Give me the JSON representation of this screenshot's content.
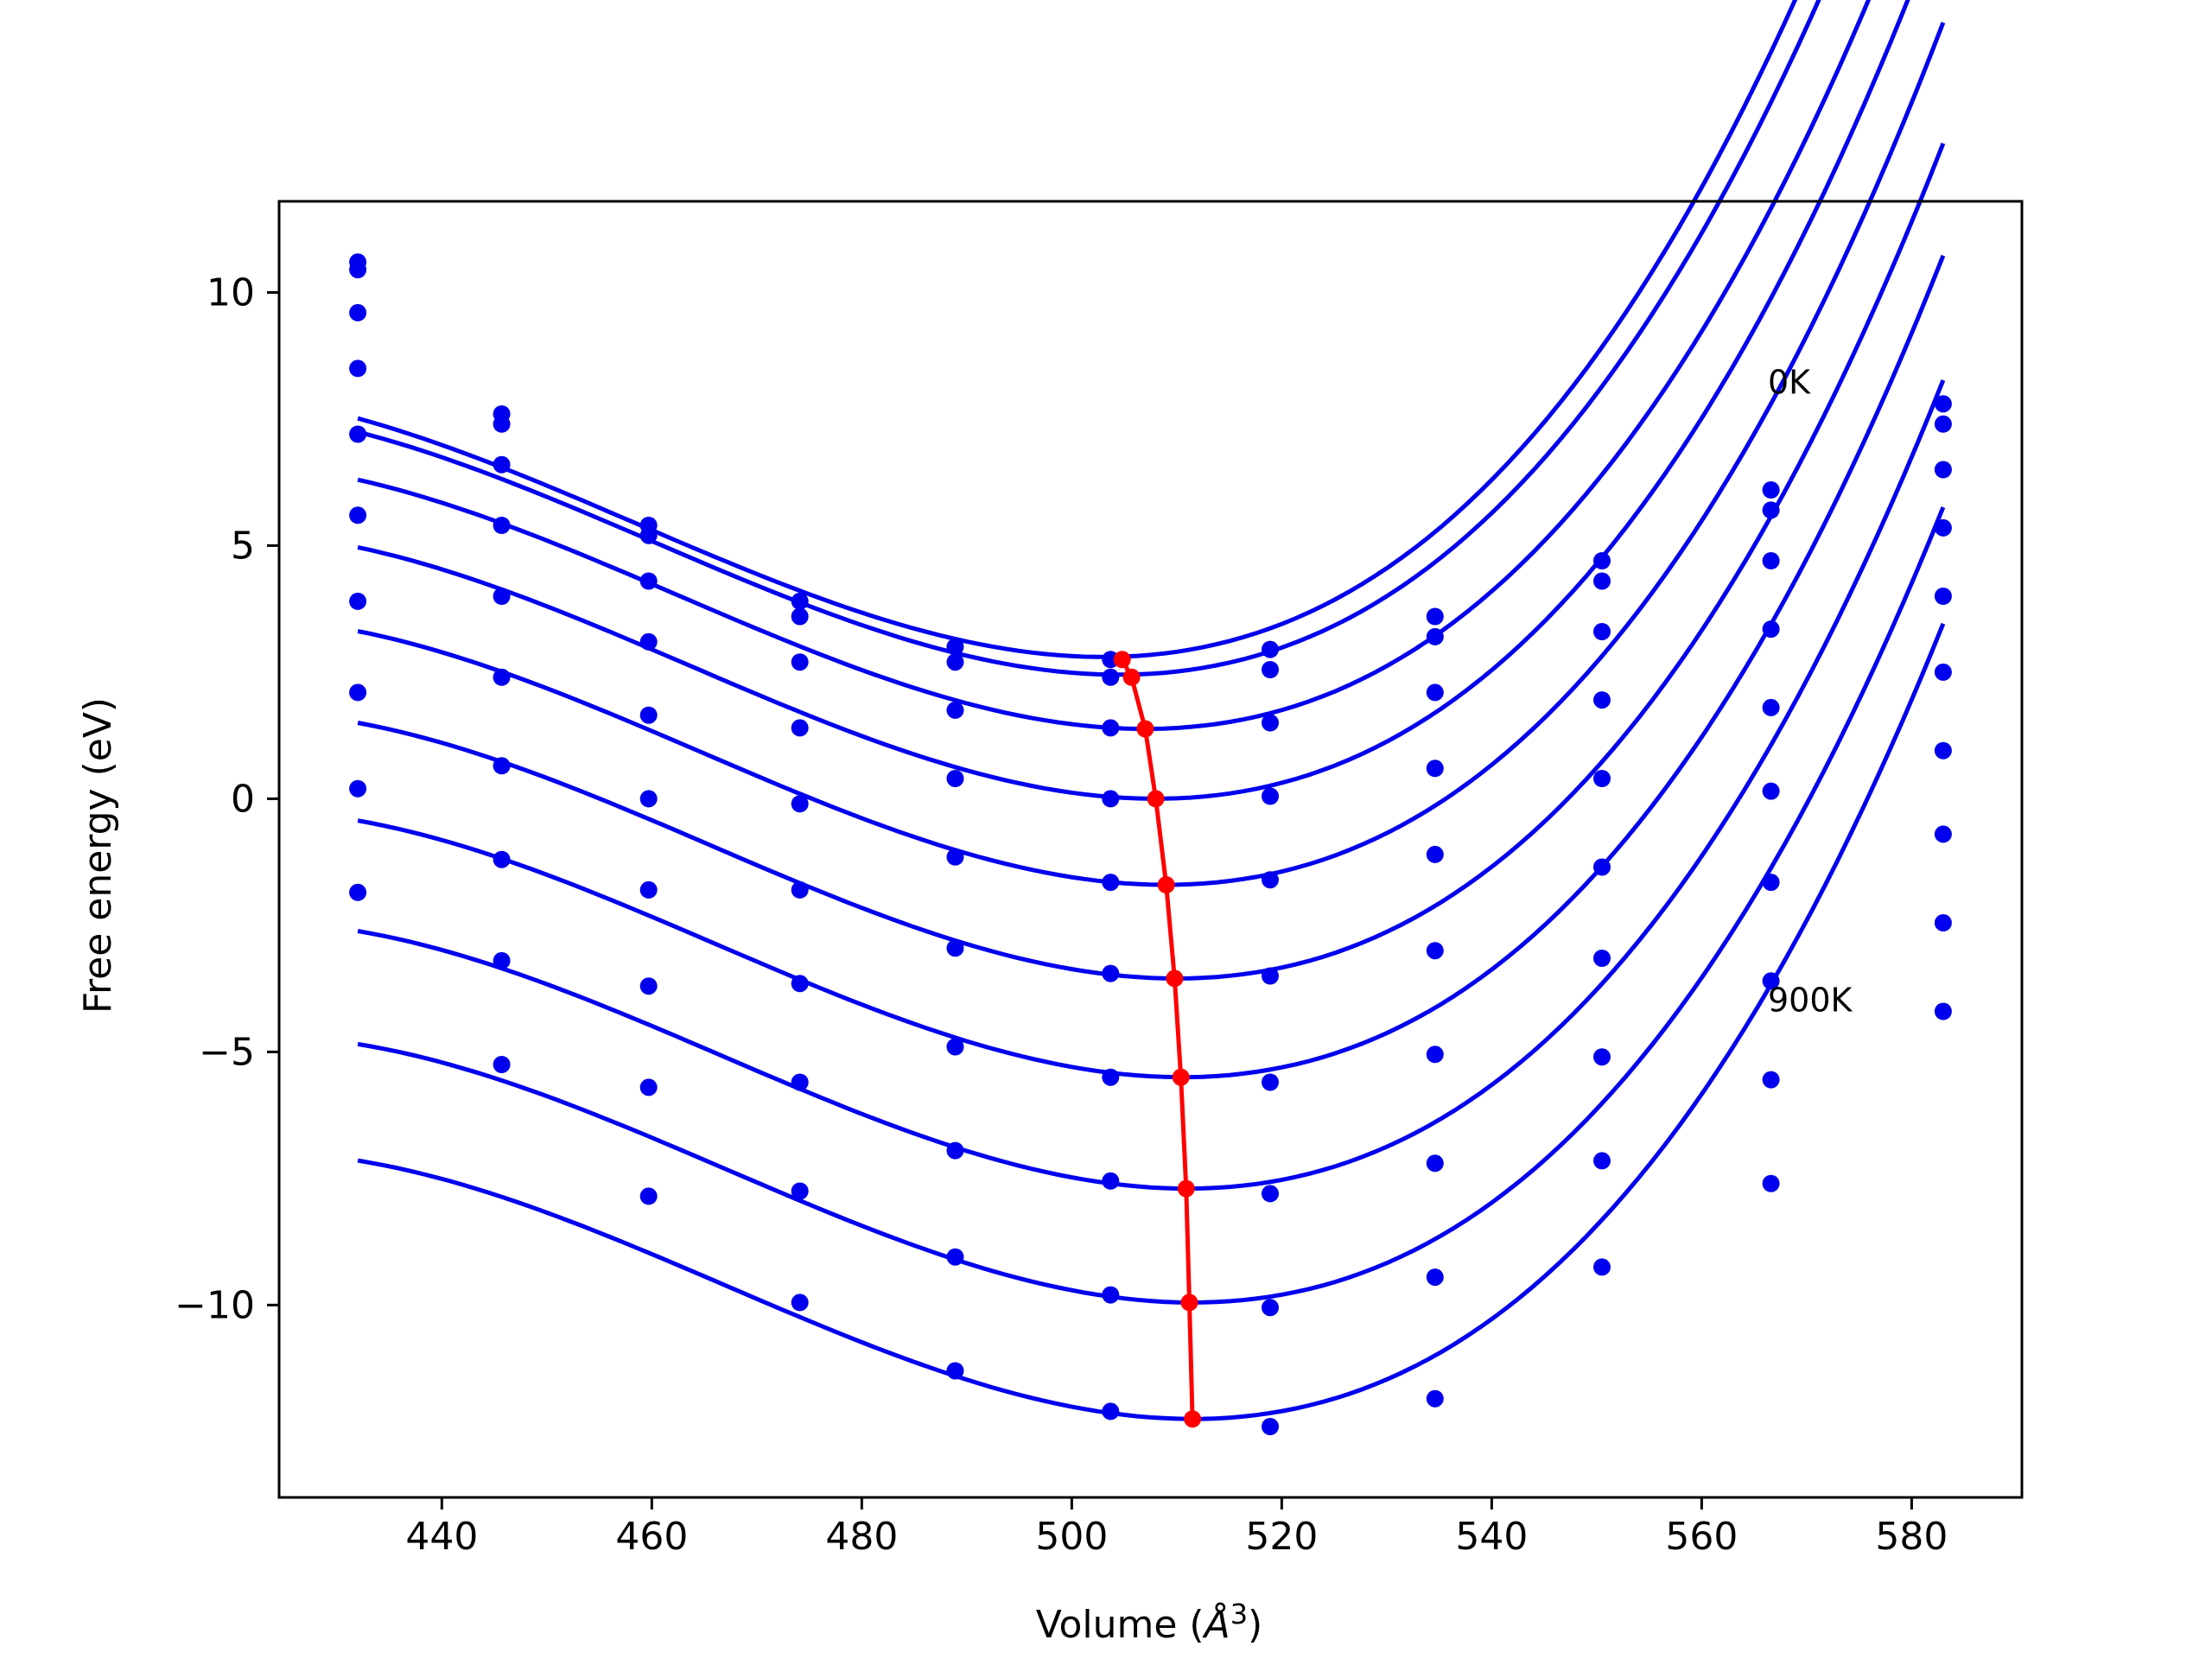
{
  "chart_data": {
    "type": "line",
    "xlabel_prefix": "Volume (",
    "xlabel_unit": "Å",
    "xlabel_exp": "3",
    "xlabel_suffix": ")",
    "ylabel": "Free energy (eV)",
    "xlim": [
      424.5,
      590.5
    ],
    "ylim": [
      -13.8,
      11.8
    ],
    "xticks": [
      440,
      460,
      480,
      500,
      520,
      540,
      560,
      580
    ],
    "yticks": [
      10,
      5,
      0,
      -5,
      -10
    ],
    "ytick_labels": [
      "10",
      "5",
      "0",
      "−5",
      "−10"
    ],
    "grid": false,
    "colors": {
      "curves": "#0000ee",
      "minimum_line": "#ff0000",
      "axes": "#000000"
    },
    "annotations": [
      {
        "text": "0K",
        "x": 566.3,
        "y": 8.0
      },
      {
        "text": "900K",
        "x": 566.3,
        "y": -4.2
      }
    ],
    "volumes": [
      432.0,
      445.7,
      459.7,
      474.1,
      488.9,
      503.7,
      518.9,
      534.6,
      550.5,
      566.6,
      583.0
    ],
    "series": [
      {
        "values": [
          10.6,
          7.6,
          5.4,
          3.9,
          3.0,
          2.75,
          2.95,
          3.6,
          4.7,
          6.1,
          7.8
        ],
        "fit": [
          2.8,
          503.0,
          0.002,
          1.5e-05
        ]
      },
      {
        "values": [
          10.45,
          7.4,
          5.2,
          3.6,
          2.7,
          2.4,
          2.55,
          3.2,
          4.3,
          5.7,
          7.4
        ],
        "fit": [
          2.45,
          504.5,
          0.002,
          1.5e-05
        ]
      },
      {
        "values": [
          9.6,
          6.6,
          4.3,
          2.7,
          1.75,
          1.4,
          1.5,
          2.1,
          3.3,
          4.7,
          6.5
        ],
        "fit": [
          1.38,
          507.0,
          0.002,
          1.5e-05
        ]
      },
      {
        "values": [
          8.5,
          5.4,
          3.1,
          1.4,
          0.4,
          0.0,
          0.05,
          0.6,
          1.95,
          3.35,
          5.35
        ],
        "fit": [
          0.0,
          508.0,
          0.002,
          1.5e-05
        ]
      },
      {
        "values": [
          7.2,
          4.0,
          1.65,
          -0.1,
          -1.15,
          -1.65,
          -1.6,
          -1.1,
          0.4,
          1.8,
          4.0
        ],
        "fit": [
          -1.7,
          509.0,
          0.002,
          1.5e-05
        ]
      },
      {
        "values": [
          5.6,
          2.4,
          0.0,
          -1.8,
          -2.95,
          -3.45,
          -3.5,
          -3.0,
          -1.35,
          0.15,
          2.5
        ],
        "fit": [
          -3.55,
          510.0,
          0.002,
          1.5e-05
        ]
      },
      {
        "values": [
          3.9,
          0.65,
          -1.8,
          -3.65,
          -4.9,
          -5.5,
          -5.6,
          -5.05,
          -3.15,
          -1.65,
          0.95
        ],
        "fit": [
          -5.5,
          510.5,
          0.002,
          1.5e-05
        ]
      },
      {
        "values": [
          2.1,
          -1.2,
          -3.7,
          -5.6,
          -6.95,
          -7.55,
          -7.8,
          -7.2,
          -5.1,
          -3.6,
          -0.7
        ],
        "fit": [
          -7.7,
          511.0,
          0.002,
          1.5e-05
        ]
      },
      {
        "values": [
          0.2,
          -3.2,
          -5.7,
          -7.75,
          -9.05,
          -9.8,
          -10.05,
          -9.45,
          -7.15,
          -5.55,
          -2.45
        ],
        "fit": [
          -9.95,
          511.5,
          0.002,
          1.5e-05
        ]
      },
      {
        "values": [
          -1.85,
          -5.25,
          -7.85,
          -9.95,
          -11.3,
          -12.1,
          -12.4,
          -11.85,
          -9.25,
          -7.6,
          -4.2
        ],
        "fit": [
          -12.25,
          511.5,
          0.002,
          1.5e-05
        ]
      }
    ],
    "minimum_curve": {
      "x": [
        504.8,
        505.7,
        507.0,
        508.0,
        509.0,
        509.8,
        510.4,
        510.9,
        511.2,
        511.5
      ],
      "y": [
        2.75,
        2.4,
        1.38,
        0.0,
        -1.7,
        -3.55,
        -5.5,
        -7.7,
        -9.95,
        -12.25
      ]
    }
  }
}
